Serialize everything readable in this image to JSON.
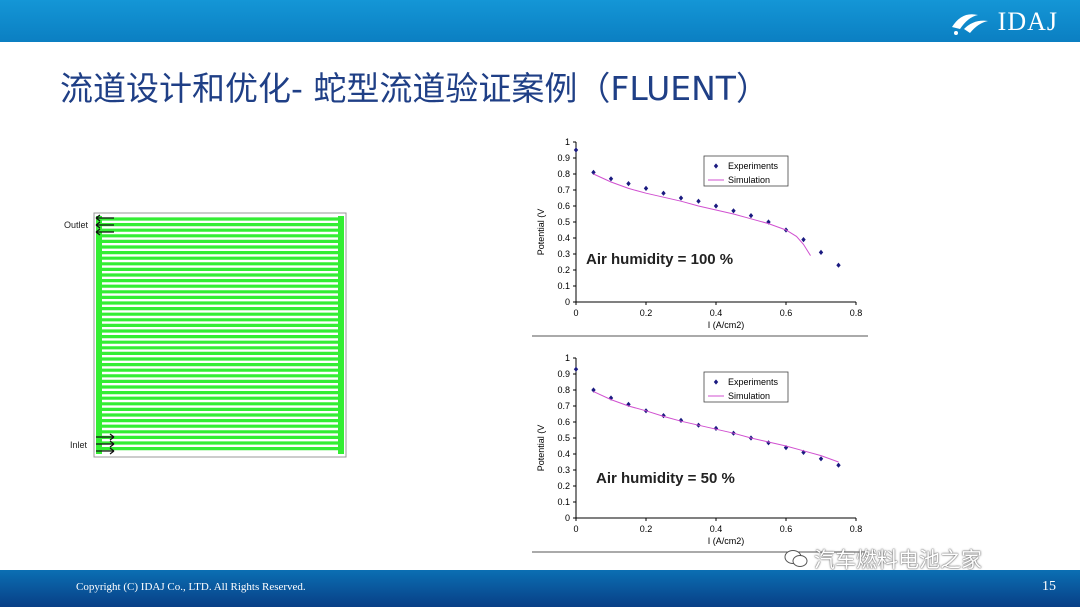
{
  "header": {
    "logo_text": "IDAJ"
  },
  "slide": {
    "title": "流道设计和优化- 蛇型流道验证案例（FLUENT）"
  },
  "flowfield": {
    "outlet_label": "Outlet",
    "inlet_label": "Inlet",
    "channel_color": "#33ee33"
  },
  "chart_data": [
    {
      "type": "scatter",
      "annotation": "Air humidity = 100 %",
      "xlabel": "I (A/cm2)",
      "ylabel": "Potential (V",
      "xlim": [
        0,
        0.8
      ],
      "ylim": [
        0,
        1
      ],
      "xticks": [
        "0",
        "0.2",
        "0.4",
        "0.6",
        "0.8"
      ],
      "yticks": [
        "0",
        "0.1",
        "0.2",
        "0.3",
        "0.4",
        "0.5",
        "0.6",
        "0.7",
        "0.8",
        "0.9",
        "1"
      ],
      "legend_position": "top-right",
      "series": [
        {
          "name": "Experiments",
          "kind": "points",
          "color": "#1a1a80",
          "x": [
            0.0,
            0.05,
            0.1,
            0.15,
            0.2,
            0.25,
            0.3,
            0.35,
            0.4,
            0.45,
            0.5,
            0.55,
            0.6,
            0.65,
            0.7,
            0.75
          ],
          "y": [
            0.95,
            0.81,
            0.77,
            0.74,
            0.71,
            0.68,
            0.65,
            0.63,
            0.6,
            0.57,
            0.54,
            0.5,
            0.45,
            0.39,
            0.31,
            0.23
          ]
        },
        {
          "name": "Simulation",
          "kind": "line",
          "color": "#d050d0",
          "x": [
            0.05,
            0.1,
            0.15,
            0.2,
            0.25,
            0.3,
            0.35,
            0.4,
            0.45,
            0.5,
            0.55,
            0.6,
            0.63,
            0.65,
            0.67
          ],
          "y": [
            0.8,
            0.75,
            0.71,
            0.68,
            0.655,
            0.63,
            0.6,
            0.575,
            0.55,
            0.52,
            0.49,
            0.45,
            0.41,
            0.36,
            0.29
          ]
        }
      ]
    },
    {
      "type": "scatter",
      "annotation": "Air humidity = 50 %",
      "xlabel": "I (A/cm2)",
      "ylabel": "Potential (V",
      "xlim": [
        0,
        0.8
      ],
      "ylim": [
        0,
        1
      ],
      "xticks": [
        "0",
        "0.2",
        "0.4",
        "0.6",
        "0.8"
      ],
      "yticks": [
        "0",
        "0.1",
        "0.2",
        "0.3",
        "0.4",
        "0.5",
        "0.6",
        "0.7",
        "0.8",
        "0.9",
        "1"
      ],
      "legend_position": "top-right",
      "series": [
        {
          "name": "Experiments",
          "kind": "points",
          "color": "#1a1a80",
          "x": [
            0.0,
            0.05,
            0.1,
            0.15,
            0.2,
            0.25,
            0.3,
            0.35,
            0.4,
            0.45,
            0.5,
            0.55,
            0.6,
            0.65,
            0.7,
            0.75
          ],
          "y": [
            0.93,
            0.8,
            0.75,
            0.71,
            0.67,
            0.64,
            0.61,
            0.58,
            0.56,
            0.53,
            0.5,
            0.47,
            0.44,
            0.41,
            0.37,
            0.33
          ]
        },
        {
          "name": "Simulation",
          "kind": "line",
          "color": "#d050d0",
          "x": [
            0.05,
            0.1,
            0.15,
            0.2,
            0.25,
            0.3,
            0.35,
            0.4,
            0.45,
            0.5,
            0.55,
            0.6,
            0.65,
            0.7,
            0.75
          ],
          "y": [
            0.79,
            0.74,
            0.7,
            0.67,
            0.635,
            0.605,
            0.58,
            0.555,
            0.53,
            0.5,
            0.475,
            0.45,
            0.42,
            0.39,
            0.35
          ]
        }
      ]
    }
  ],
  "footer": {
    "copyright": "Copyright (C) IDAJ Co., LTD. All Rights Reserved.",
    "page_number": "15",
    "watermark": "汽车燃料电池之家"
  }
}
